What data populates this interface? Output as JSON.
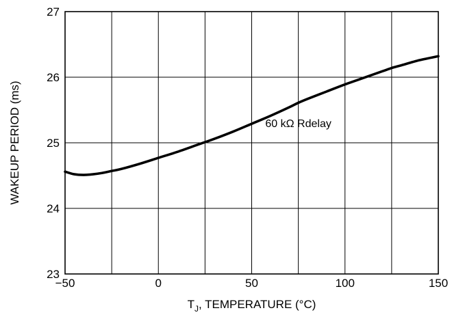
{
  "chart_data": {
    "type": "line",
    "title": "",
    "xlabel": {
      "prefix": "T",
      "subscript": "J",
      "suffix": ", TEMPERATURE (°C)"
    },
    "ylabel": "WAKEUP PERIOD (ms)",
    "xlim": [
      -50,
      150
    ],
    "ylim": [
      23,
      27
    ],
    "x_ticks": [
      -50,
      0,
      50,
      100,
      150
    ],
    "x_tick_labels": [
      "−50",
      "0",
      "50",
      "100",
      "150"
    ],
    "x_gridlines": [
      -25,
      0,
      25,
      50,
      75,
      100,
      125
    ],
    "y_ticks": [
      23,
      24,
      25,
      26,
      27
    ],
    "y_tick_labels": [
      "23",
      "24",
      "25",
      "26",
      "27"
    ],
    "grid": true,
    "series": [
      {
        "x": [
          -50,
          -45,
          -40,
          -35,
          -30,
          -25,
          -20,
          -10,
          0,
          10,
          20,
          25,
          30,
          40,
          50,
          60,
          70,
          75,
          80,
          90,
          100,
          110,
          120,
          125,
          130,
          140,
          150
        ],
        "y": [
          24.56,
          24.52,
          24.51,
          24.52,
          24.54,
          24.57,
          24.6,
          24.68,
          24.77,
          24.86,
          24.96,
          25.01,
          25.06,
          25.17,
          25.29,
          25.41,
          25.54,
          25.61,
          25.67,
          25.78,
          25.89,
          25.99,
          26.09,
          26.14,
          26.18,
          26.26,
          26.32
        ],
        "color": "#000000"
      }
    ],
    "annotations": [
      {
        "text": "60 kΩ Rdelay",
        "x": 75,
        "y": 25.24
      }
    ]
  }
}
